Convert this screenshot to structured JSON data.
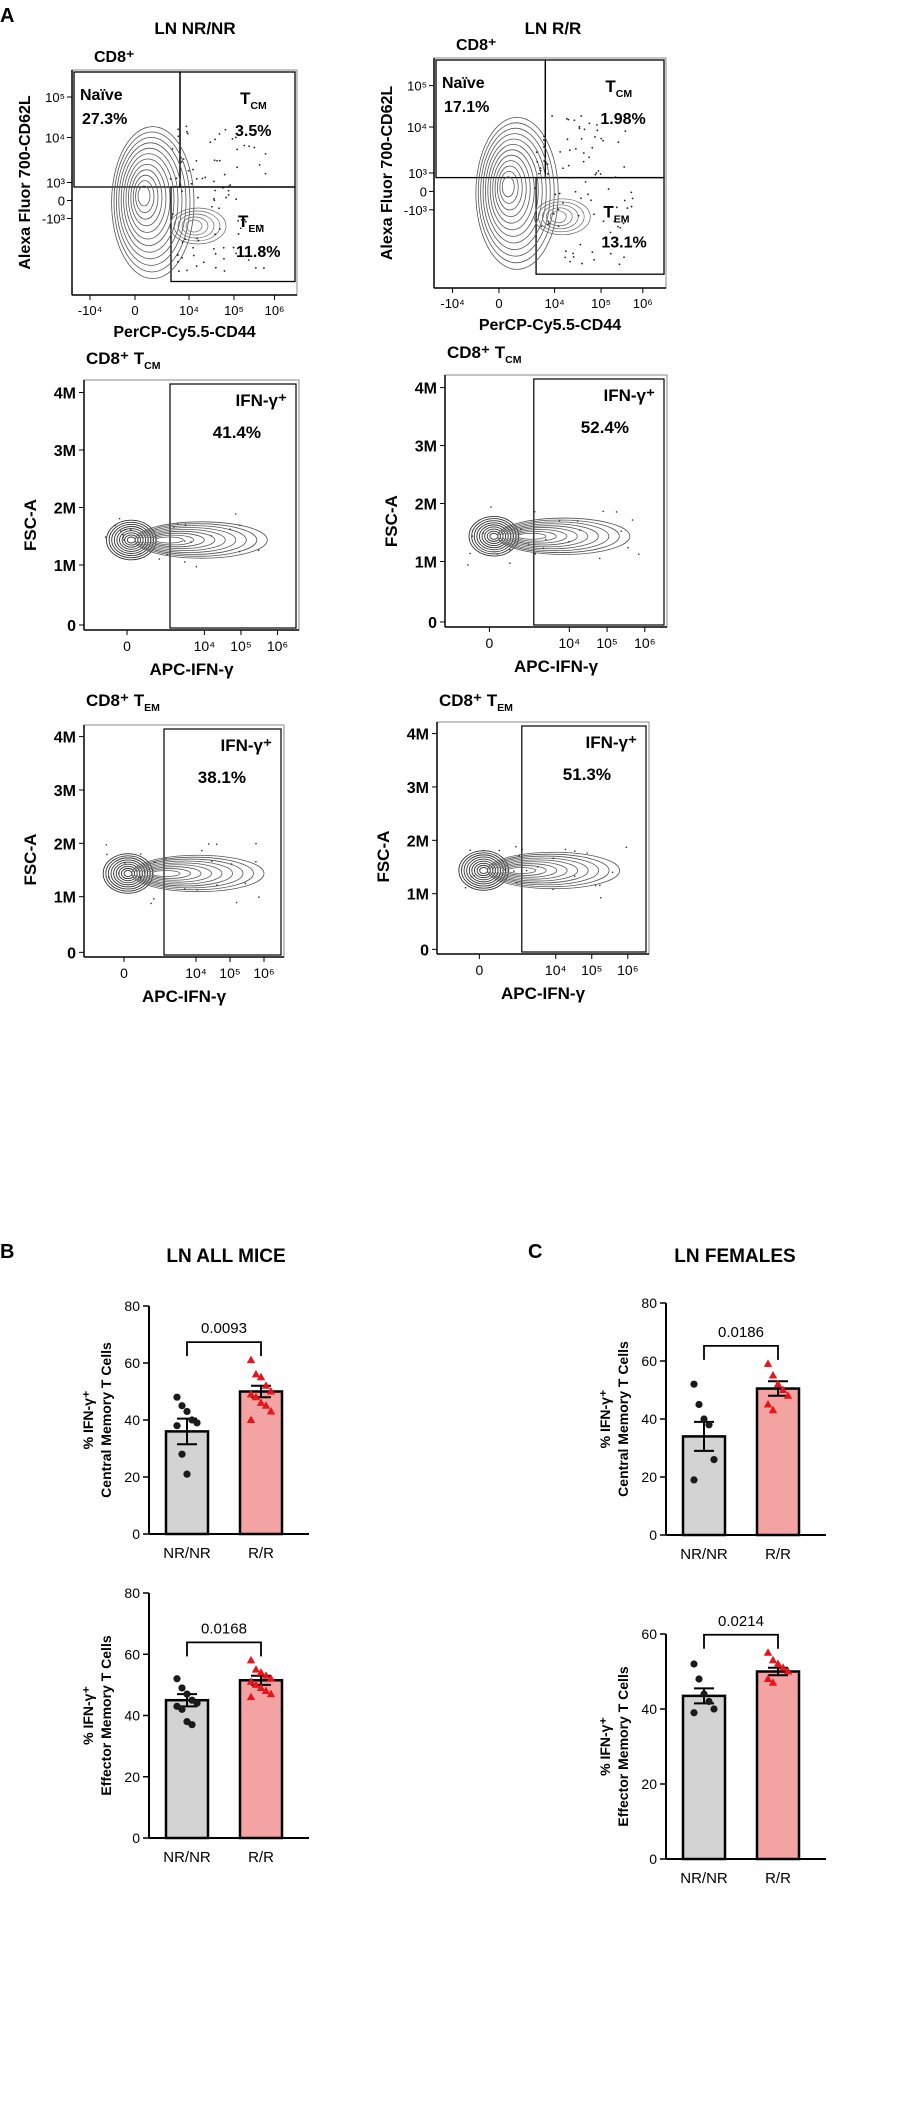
{
  "panel_labels": {
    "a": "A",
    "b": "B",
    "c": "C"
  },
  "flow_rows": [
    {
      "row": 1,
      "plots": [
        {
          "column_title": "LN NR/NR",
          "type": "gate",
          "corner_label": "CD8⁺",
          "xlabel": "PerCP-Cy5.5-CD44",
          "ylabel": "Alexa Fluor 700-CD62L",
          "xticks": [
            "-10⁴",
            "0",
            "10⁴",
            "10⁵",
            "10⁶"
          ],
          "yticks": [
            "10⁵",
            "10⁴",
            "10³",
            "0",
            "-10³"
          ],
          "gates": {
            "naive": {
              "name": "Naïve",
              "pct": "27.3%"
            },
            "tcm": {
              "name": "T",
              "sub": "CM",
              "pct": "3.5%"
            },
            "tem": {
              "name": "T",
              "sub": "EM",
              "pct": "11.8%"
            }
          }
        },
        {
          "column_title": "LN R/R",
          "type": "gate",
          "corner_label": "CD8⁺",
          "xlabel": "PerCP-Cy5.5-CD44",
          "ylabel": "Alexa Fluor 700-CD62L",
          "xticks": [
            "-10⁴",
            "0",
            "10⁴",
            "10⁵",
            "10⁶"
          ],
          "yticks": [
            "10⁵",
            "10⁴",
            "10³",
            "0",
            "-10³"
          ],
          "gates": {
            "naive": {
              "name": "Naïve",
              "pct": "17.1%"
            },
            "tcm": {
              "name": "T",
              "sub": "CM",
              "pct": "1.98%"
            },
            "tem": {
              "name": "T",
              "sub": "EM",
              "pct": "13.1%"
            }
          }
        }
      ]
    },
    {
      "row": 2,
      "plots": [
        {
          "type": "ifn",
          "title": "CD8⁺ T",
          "title_sub": "CM",
          "gate_label": "IFN-γ⁺",
          "pct": "41.4%",
          "xlabel": "APC-IFN-γ",
          "ylabel": "FSC-A",
          "xticks": [
            "0",
            "10⁴",
            "10⁵",
            "10⁶"
          ],
          "yticks": [
            "4M",
            "3M",
            "2M",
            "1M",
            "0"
          ]
        },
        {
          "type": "ifn",
          "title": "CD8⁺ T",
          "title_sub": "CM",
          "gate_label": "IFN-γ⁺",
          "pct": "52.4%",
          "xlabel": "APC-IFN-γ",
          "ylabel": "FSC-A",
          "xticks": [
            "0",
            "10⁴",
            "10⁵",
            "10⁶"
          ],
          "yticks": [
            "4M",
            "3M",
            "2M",
            "1M",
            "0"
          ]
        }
      ]
    },
    {
      "row": 3,
      "plots": [
        {
          "type": "ifn",
          "title": "CD8⁺ T",
          "title_sub": "EM",
          "gate_label": "IFN-γ⁺",
          "pct": "38.1%",
          "xlabel": "APC-IFN-γ",
          "ylabel": "FSC-A",
          "xticks": [
            "0",
            "10⁴",
            "10⁵",
            "10⁶"
          ],
          "yticks": [
            "4M",
            "3M",
            "2M",
            "1M",
            "0"
          ]
        },
        {
          "type": "ifn",
          "title": "CD8⁺ T",
          "title_sub": "EM",
          "gate_label": "IFN-γ⁺",
          "pct": "51.3%",
          "xlabel": "APC-IFN-γ",
          "ylabel": "FSC-A",
          "xticks": [
            "0",
            "10⁴",
            "10⁵",
            "10⁶"
          ],
          "yticks": [
            "4M",
            "3M",
            "2M",
            "1M",
            "0"
          ]
        }
      ]
    }
  ],
  "chart_data": [
    {
      "type": "bar",
      "panel": "B",
      "title": "LN ALL MICE",
      "ylabel_line1": "% IFN-γ⁺",
      "ylabel_line2": "Central Memory T Cells",
      "categories": [
        "NR/NR",
        "R/R"
      ],
      "means": [
        36,
        50
      ],
      "sem": [
        4.5,
        2
      ],
      "points": [
        [
          48,
          45,
          43,
          40,
          39,
          38,
          28,
          21
        ],
        [
          61,
          56,
          55,
          52,
          50,
          49,
          48,
          46,
          45,
          43,
          40
        ]
      ],
      "ylim": [
        0,
        80
      ],
      "yticks": [
        0,
        20,
        40,
        60,
        80
      ],
      "pvalue": "0.0093",
      "colors": [
        "#d3d3d3",
        "#f4a3a3"
      ],
      "point_colors": [
        "#1a1a1a",
        "#e8141c"
      ]
    },
    {
      "type": "bar",
      "panel": "B",
      "title": "",
      "ylabel_line1": "% IFN-γ⁺",
      "ylabel_line2": "Effector Memory T Cells",
      "categories": [
        "NR/NR",
        "R/R"
      ],
      "means": [
        45,
        51.5
      ],
      "sem": [
        2,
        1.5
      ],
      "points": [
        [
          52,
          49,
          47,
          45,
          44,
          43,
          42,
          38,
          37
        ],
        [
          58,
          55,
          54,
          53,
          52,
          51,
          50,
          49,
          48,
          47,
          46
        ]
      ],
      "ylim": [
        0,
        80
      ],
      "yticks": [
        0,
        20,
        40,
        60,
        80
      ],
      "pvalue": "0.0168",
      "colors": [
        "#d3d3d3",
        "#f4a3a3"
      ],
      "point_colors": [
        "#1a1a1a",
        "#e8141c"
      ]
    },
    {
      "type": "bar",
      "panel": "C",
      "title": "LN FEMALES",
      "ylabel_line1": "% IFN-γ⁺",
      "ylabel_line2": "Central Memory T Cells",
      "categories": [
        "NR/NR",
        "R/R"
      ],
      "means": [
        34,
        50.5
      ],
      "sem": [
        5,
        2.5
      ],
      "points": [
        [
          52,
          45,
          40,
          38,
          26,
          19
        ],
        [
          59,
          55,
          52,
          50,
          48,
          45,
          43
        ]
      ],
      "ylim": [
        0,
        80
      ],
      "yticks": [
        0,
        20,
        40,
        60,
        80
      ],
      "pvalue": "0.0186",
      "colors": [
        "#d3d3d3",
        "#f4a3a3"
      ],
      "point_colors": [
        "#1a1a1a",
        "#e8141c"
      ]
    },
    {
      "type": "bar",
      "panel": "C",
      "title": "",
      "ylabel_line1": "% IFN-γ⁺",
      "ylabel_line2": "Effector Memory T Cells",
      "categories": [
        "NR/NR",
        "R/R"
      ],
      "means": [
        43.5,
        50
      ],
      "sem": [
        2,
        1
      ],
      "points": [
        [
          52,
          48,
          44,
          42,
          40,
          39
        ],
        [
          55,
          53,
          52,
          51,
          50,
          48,
          47
        ]
      ],
      "ylim": [
        0,
        60
      ],
      "yticks": [
        0,
        20,
        40,
        60
      ],
      "pvalue": "0.0214",
      "colors": [
        "#d3d3d3",
        "#f4a3a3"
      ],
      "point_colors": [
        "#1a1a1a",
        "#e8141c"
      ]
    }
  ]
}
